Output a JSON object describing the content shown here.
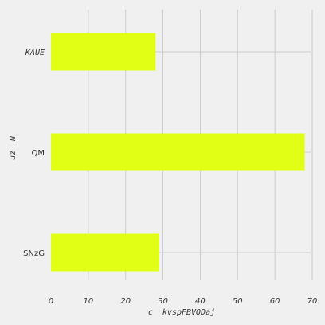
{
  "chart_data": {
    "type": "bar",
    "orientation": "horizontal",
    "categories": [
      "KAUE",
      "QM",
      "SNzG"
    ],
    "values": [
      28,
      68,
      29
    ],
    "xlabel": "c  kvspFBVQDaj",
    "ylabel": "uz  N",
    "xlim": [
      0,
      70
    ],
    "xticks": [
      0,
      10,
      20,
      30,
      40,
      50,
      60,
      70
    ],
    "grid": true,
    "bar_color": "#e0ff14",
    "background_color": "#f0f0f0",
    "grid_color": "#cbcbcb"
  }
}
